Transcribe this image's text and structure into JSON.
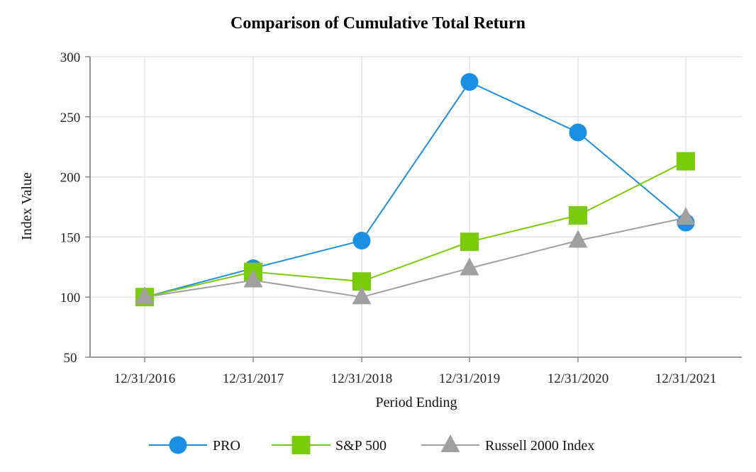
{
  "chart_data": {
    "type": "line",
    "title": "Comparison of Cumulative Total Return",
    "xlabel": "Period Ending",
    "ylabel": "Index Value",
    "categories": [
      "12/31/2016",
      "12/31/2017",
      "12/31/2018",
      "12/31/2019",
      "12/31/2020",
      "12/31/2021"
    ],
    "ylim": [
      50,
      300
    ],
    "yticks": [
      50,
      100,
      150,
      200,
      250,
      300
    ],
    "grid": true,
    "legend_position": "bottom-center",
    "series": [
      {
        "name": "PRO",
        "marker": "circle",
        "color": "#1a8fe3",
        "values": [
          100,
          124,
          147,
          279,
          237,
          162
        ]
      },
      {
        "name": "S&P 500",
        "marker": "square",
        "color": "#7acc0a",
        "values": [
          100,
          121,
          113,
          146,
          168,
          213
        ]
      },
      {
        "name": "Russell 2000 Index",
        "marker": "triangle",
        "color": "#a0a0a0",
        "values": [
          100,
          114,
          100,
          124,
          147,
          166
        ]
      }
    ]
  }
}
